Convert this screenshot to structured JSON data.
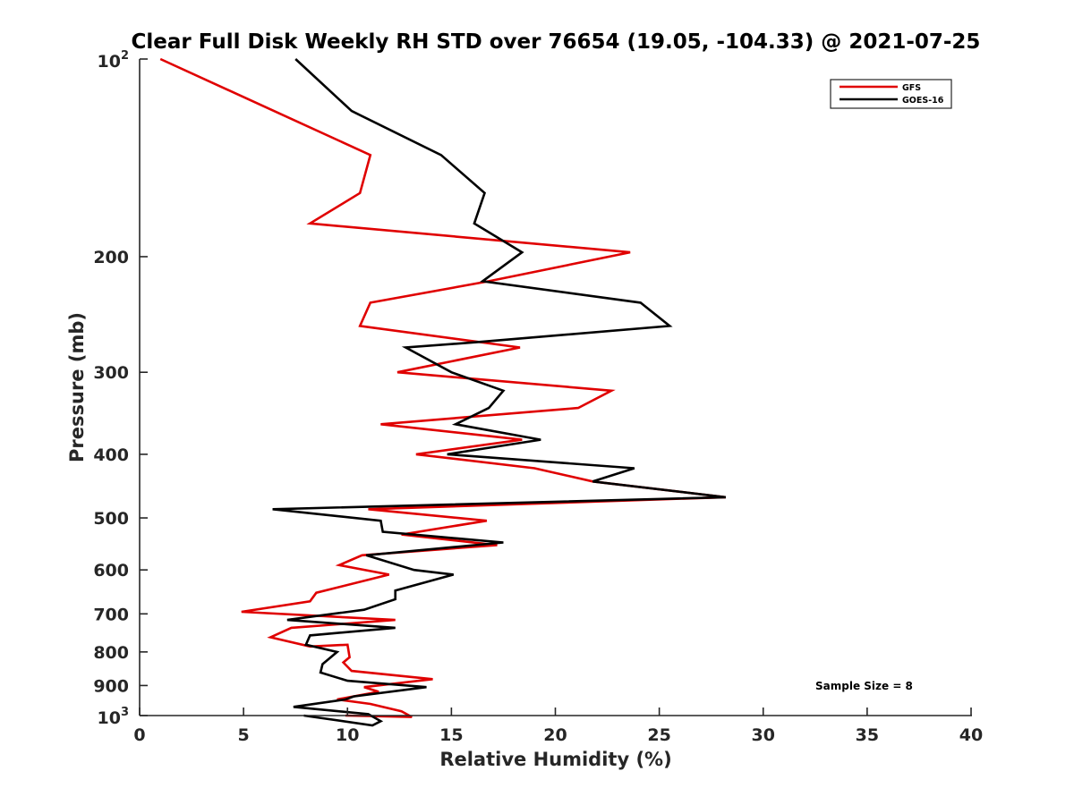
{
  "chart_data": {
    "type": "line",
    "title": "Clear Full Disk Weekly RH STD over 76654 (19.05, -104.33) @ 2021-07-25",
    "xlabel": "Relative Humidity (%)",
    "ylabel": "Pressure (mb)",
    "xlim": [
      0,
      40
    ],
    "ylim": [
      100,
      1000
    ],
    "yscale": "log",
    "y_reversed": true,
    "grid": false,
    "x_ticks": [
      0,
      5,
      10,
      15,
      20,
      25,
      30,
      35,
      40
    ],
    "x_tick_labels": [
      "0",
      "5",
      "10",
      "15",
      "20",
      "25",
      "30",
      "35",
      "40"
    ],
    "y_ticks": [
      100,
      200,
      300,
      400,
      500,
      600,
      700,
      800,
      900,
      1000
    ],
    "y_tick_labels": [
      {
        "base": "10",
        "sup": "2"
      },
      {
        "base": "200",
        "sup": ""
      },
      {
        "base": "300",
        "sup": ""
      },
      {
        "base": "400",
        "sup": ""
      },
      {
        "base": "500",
        "sup": ""
      },
      {
        "base": "600",
        "sup": ""
      },
      {
        "base": "700",
        "sup": ""
      },
      {
        "base": "800",
        "sup": ""
      },
      {
        "base": "900",
        "sup": ""
      },
      {
        "base": "10",
        "sup": "3"
      }
    ],
    "legend": {
      "placement": "top-right",
      "entries": [
        "GFS",
        "GOES-16"
      ]
    },
    "annotation": "Sample Size = 8",
    "series": [
      {
        "name": "GFS",
        "color": "#e00000",
        "points": [
          [
            1.0,
            100
          ],
          [
            11.1,
            140
          ],
          [
            10.6,
            160
          ],
          [
            8.2,
            178
          ],
          [
            23.6,
            197
          ],
          [
            16.8,
            218
          ],
          [
            11.1,
            235
          ],
          [
            10.6,
            255
          ],
          [
            18.3,
            275
          ],
          [
            12.4,
            300
          ],
          [
            22.7,
            320
          ],
          [
            21.1,
            340
          ],
          [
            11.6,
            360
          ],
          [
            18.4,
            380
          ],
          [
            13.3,
            400
          ],
          [
            19.0,
            420
          ],
          [
            21.8,
            440
          ],
          [
            28.2,
            465
          ],
          [
            11.0,
            485
          ],
          [
            16.7,
            505
          ],
          [
            12.6,
            530
          ],
          [
            17.2,
            550
          ],
          [
            10.7,
            570
          ],
          [
            9.6,
            590
          ],
          [
            12.0,
            610
          ],
          [
            8.5,
            650
          ],
          [
            8.2,
            670
          ],
          [
            4.9,
            695
          ],
          [
            12.3,
            715
          ],
          [
            7.3,
            735
          ],
          [
            6.3,
            760
          ],
          [
            8.2,
            785
          ],
          [
            10.0,
            780
          ],
          [
            10.1,
            815
          ],
          [
            9.8,
            830
          ],
          [
            10.2,
            855
          ],
          [
            14.1,
            880
          ],
          [
            10.8,
            905
          ],
          [
            11.5,
            920
          ],
          [
            9.5,
            945
          ],
          [
            11.1,
            960
          ],
          [
            12.6,
            985
          ],
          [
            13.1,
            1005
          ],
          [
            9.9,
            1000
          ]
        ]
      },
      {
        "name": "GOES-16",
        "color": "#000000",
        "points": [
          [
            7.5,
            100
          ],
          [
            10.2,
            120
          ],
          [
            14.5,
            140
          ],
          [
            16.6,
            160
          ],
          [
            16.1,
            178
          ],
          [
            18.4,
            197
          ],
          [
            16.5,
            218
          ],
          [
            24.1,
            235
          ],
          [
            25.5,
            255
          ],
          [
            16.2,
            270
          ],
          [
            12.8,
            275
          ],
          [
            15.0,
            300
          ],
          [
            17.5,
            320
          ],
          [
            16.8,
            340
          ],
          [
            15.2,
            360
          ],
          [
            19.3,
            380
          ],
          [
            14.8,
            400
          ],
          [
            23.8,
            420
          ],
          [
            21.8,
            440
          ],
          [
            28.2,
            465
          ],
          [
            6.4,
            485
          ],
          [
            11.6,
            505
          ],
          [
            11.7,
            525
          ],
          [
            17.5,
            545
          ],
          [
            10.9,
            570
          ],
          [
            13.2,
            600
          ],
          [
            15.1,
            610
          ],
          [
            12.3,
            645
          ],
          [
            12.3,
            665
          ],
          [
            10.8,
            690
          ],
          [
            7.1,
            715
          ],
          [
            12.3,
            735
          ],
          [
            8.2,
            755
          ],
          [
            8.0,
            780
          ],
          [
            9.5,
            800
          ],
          [
            9.1,
            820
          ],
          [
            8.8,
            835
          ],
          [
            8.7,
            860
          ],
          [
            10.0,
            885
          ],
          [
            13.8,
            905
          ],
          [
            10.3,
            935
          ],
          [
            9.9,
            945
          ],
          [
            7.4,
            970
          ],
          [
            11.0,
            995
          ],
          [
            11.6,
            1020
          ],
          [
            11.2,
            1035
          ],
          [
            7.9,
            1000
          ]
        ]
      }
    ]
  }
}
